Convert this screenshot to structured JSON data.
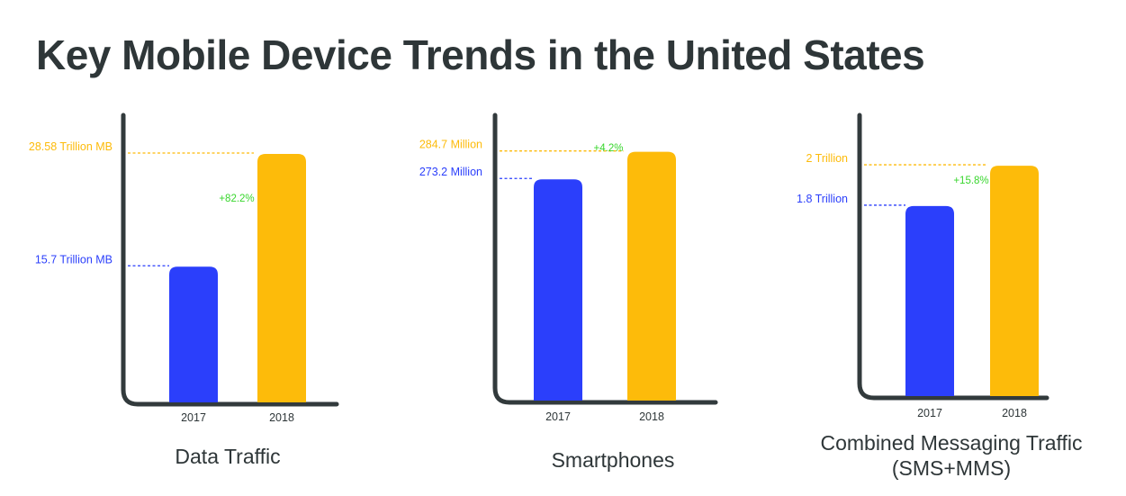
{
  "page": {
    "title": "Key Mobile Device Trends in the United States"
  },
  "colors": {
    "bar_2017": "#2b3ffb",
    "bar_2018": "#fdbb0a",
    "change_label": "#38d62d",
    "axis": "#323a3c",
    "text": "#2e3638"
  },
  "chart_data": [
    {
      "type": "bar",
      "title": "Data Traffic",
      "categories": [
        "2017",
        "2018"
      ],
      "values": [
        15.7,
        28.58
      ],
      "value_labels": [
        "15.7 Trillion MB",
        "28.58 Trillion MB"
      ],
      "change_label": "+82.2%",
      "unit": "Trillion MB",
      "ylim": [
        0,
        33
      ]
    },
    {
      "type": "bar",
      "title": "Smartphones",
      "categories": [
        "2017",
        "2018"
      ],
      "values": [
        273.2,
        284.7
      ],
      "value_labels": [
        "273.2 Million",
        "284.7 Million"
      ],
      "change_label": "+4.2%",
      "unit": "Million",
      "ylim": [
        180,
        300
      ]
    },
    {
      "type": "bar",
      "title": "Combined Messaging Traffic\n(SMS+MMS)",
      "categories": [
        "2017",
        "2018"
      ],
      "values": [
        1.8,
        2.0
      ],
      "value_labels": [
        "1.8 Trillion",
        "2 Trillion"
      ],
      "change_label": "+15.8%",
      "unit": "Trillion",
      "ylim": [
        0.85,
        2.25
      ]
    }
  ]
}
